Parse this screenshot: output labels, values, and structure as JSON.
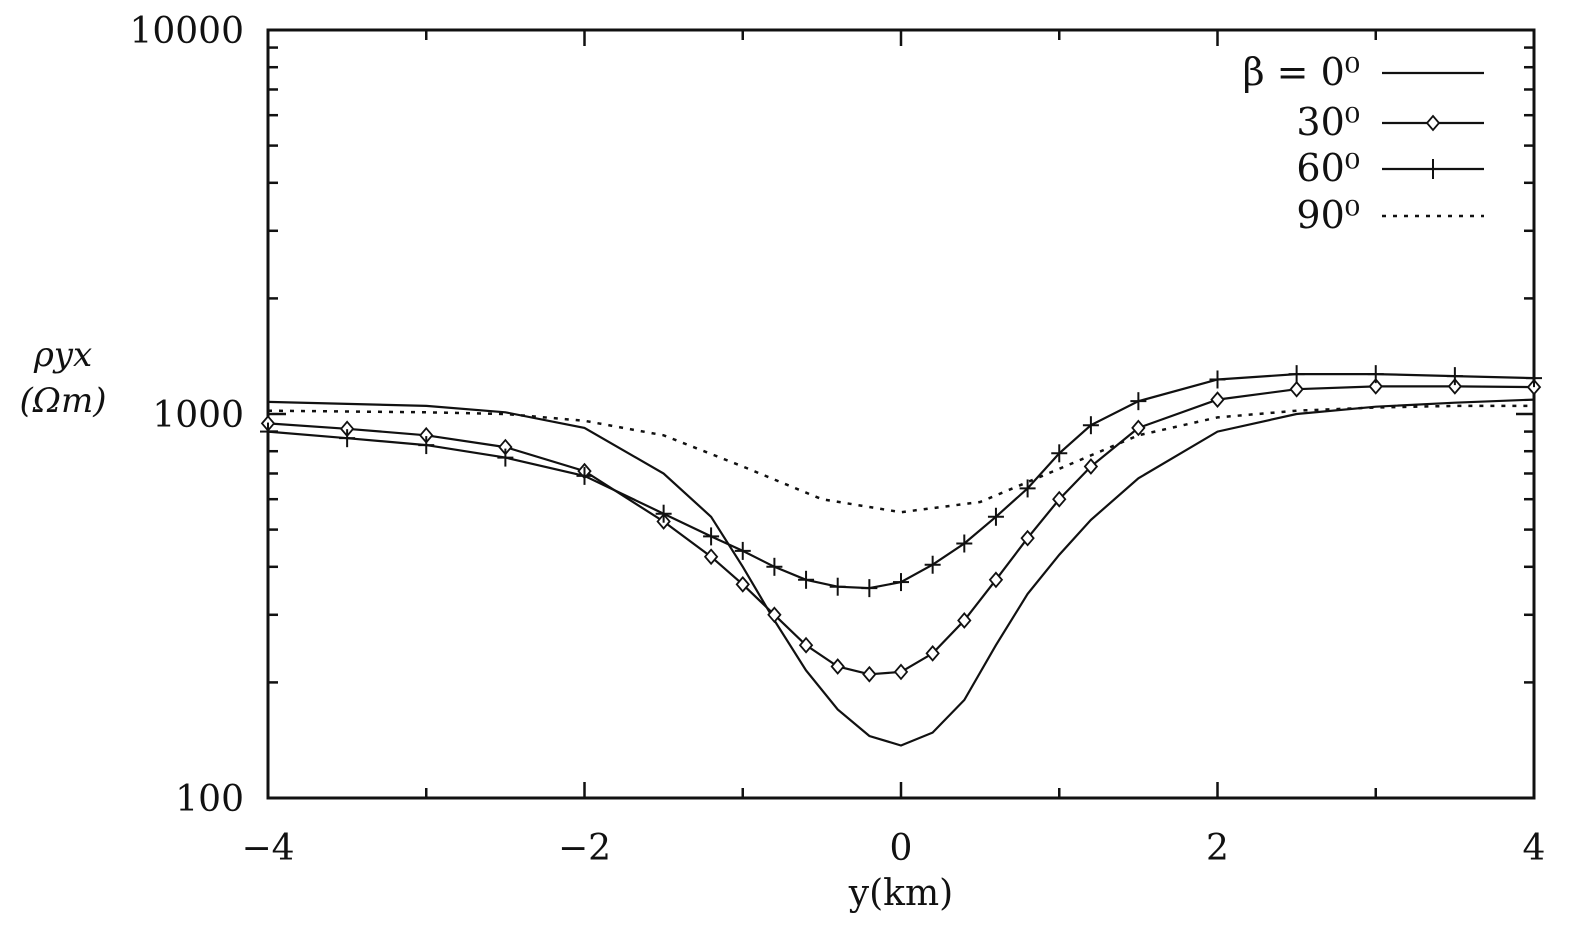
{
  "chart_data": {
    "type": "line",
    "title": "",
    "xlabel": "y(km)",
    "ylabel_line1": "ρyx",
    "ylabel_line2": "(Ωm)",
    "xlim": [
      -4,
      4
    ],
    "ylim": [
      100,
      10000
    ],
    "yscale": "log",
    "x_ticks": [
      -4,
      -2,
      0,
      2,
      4
    ],
    "x_tick_labels": [
      "−4",
      "−2",
      "0",
      "2",
      "4"
    ],
    "y_ticks": [
      100,
      1000,
      10000
    ],
    "y_tick_labels": [
      "100",
      "1000",
      "10000"
    ],
    "legend_position": "top-right",
    "legend_title": "β =",
    "series": [
      {
        "name": "0⁰",
        "marker": "none",
        "dash": "solid",
        "x": [
          -4,
          -3,
          -2.5,
          -2,
          -1.5,
          -1.2,
          -1,
          -0.8,
          -0.6,
          -0.4,
          -0.2,
          0,
          0.2,
          0.4,
          0.6,
          0.8,
          1,
          1.2,
          1.5,
          2,
          2.5,
          3,
          3.5,
          4
        ],
        "values": [
          1075,
          1050,
          1010,
          920,
          700,
          540,
          400,
          290,
          215,
          170,
          145,
          137,
          148,
          180,
          250,
          340,
          430,
          530,
          680,
          900,
          1000,
          1045,
          1070,
          1090
        ]
      },
      {
        "name": "30⁰",
        "marker": "diamond",
        "dash": "solid",
        "x": [
          -4,
          -3.5,
          -3,
          -2.5,
          -2,
          -1.5,
          -1.2,
          -1,
          -0.8,
          -0.6,
          -0.4,
          -0.2,
          0,
          0.2,
          0.4,
          0.6,
          0.8,
          1,
          1.2,
          1.5,
          2,
          2.5,
          3,
          3.5,
          4
        ],
        "values": [
          945,
          915,
          880,
          820,
          710,
          525,
          425,
          360,
          300,
          250,
          220,
          210,
          213,
          238,
          290,
          370,
          475,
          600,
          730,
          920,
          1090,
          1160,
          1180,
          1180,
          1175
        ]
      },
      {
        "name": "60⁰",
        "marker": "plus",
        "dash": "solid",
        "x": [
          -4,
          -3.5,
          -3,
          -2.5,
          -2,
          -1.5,
          -1.2,
          -1,
          -0.8,
          -0.6,
          -0.4,
          -0.2,
          0,
          0.2,
          0.4,
          0.6,
          0.8,
          1,
          1.2,
          1.5,
          2,
          2.5,
          3,
          3.5,
          4
        ],
        "values": [
          900,
          865,
          830,
          770,
          690,
          550,
          480,
          440,
          400,
          370,
          355,
          352,
          365,
          405,
          460,
          540,
          640,
          790,
          935,
          1080,
          1230,
          1270,
          1270,
          1255,
          1240
        ]
      },
      {
        "name": "90⁰",
        "marker": "none",
        "dash": "dotted",
        "x": [
          -4,
          -3,
          -2.5,
          -2,
          -1.5,
          -1,
          -0.5,
          0,
          0.5,
          1,
          1.5,
          2,
          2.5,
          3,
          3.5,
          4
        ],
        "values": [
          1020,
          1010,
          1000,
          960,
          880,
          730,
          600,
          555,
          590,
          720,
          880,
          980,
          1020,
          1040,
          1050,
          1050
        ]
      }
    ]
  }
}
